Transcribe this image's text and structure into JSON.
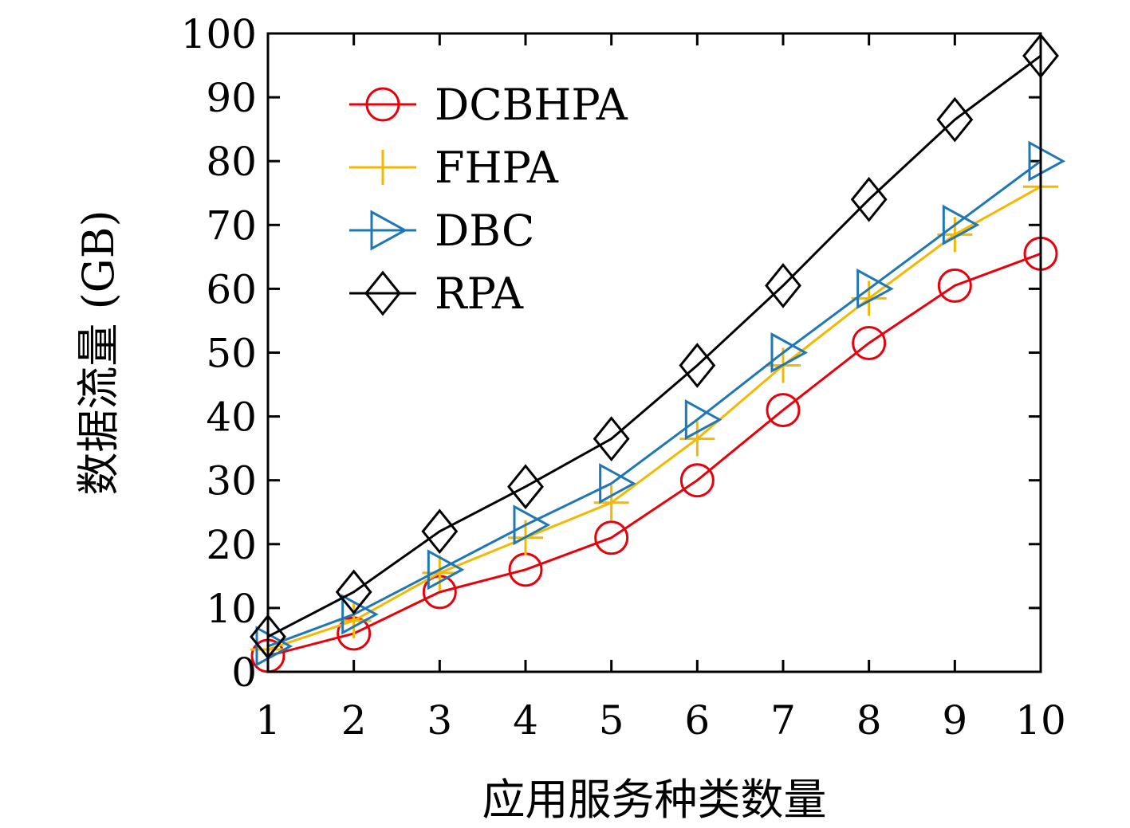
{
  "chart_data": {
    "type": "line",
    "title": "",
    "xlabel": "应用服务种类数量",
    "ylabel": "数据流量 (GB)",
    "x": [
      1,
      2,
      3,
      4,
      5,
      6,
      7,
      8,
      9,
      10
    ],
    "xlim": [
      1,
      10
    ],
    "ylim": [
      0,
      100
    ],
    "yticks": [
      0,
      10,
      20,
      30,
      40,
      50,
      60,
      70,
      80,
      90,
      100
    ],
    "xticks": [
      1,
      2,
      3,
      4,
      5,
      6,
      7,
      8,
      9,
      10
    ],
    "grid": false,
    "legend_position": "top-left",
    "series": [
      {
        "name": "DCBHPA",
        "color": "#e8000b",
        "marker": "circle",
        "values": [
          2.5,
          6,
          12.5,
          16,
          21,
          30,
          41,
          51.5,
          60.5,
          65.5
        ]
      },
      {
        "name": "FHPA",
        "color": "#f5b800",
        "marker": "plus",
        "values": [
          3.5,
          8,
          15.5,
          21,
          26.5,
          36.5,
          48,
          58.5,
          68.5,
          76
        ]
      },
      {
        "name": "DBC",
        "color": "#1f77b4",
        "marker": "triangle-right",
        "values": [
          4,
          9,
          16,
          23,
          29.5,
          39.5,
          50,
          60,
          70,
          80
        ]
      },
      {
        "name": "RPA",
        "color": "#000000",
        "marker": "diamond",
        "values": [
          5.5,
          12.5,
          22,
          29,
          36.5,
          48,
          60.5,
          74,
          86.5,
          96.5
        ]
      }
    ]
  }
}
